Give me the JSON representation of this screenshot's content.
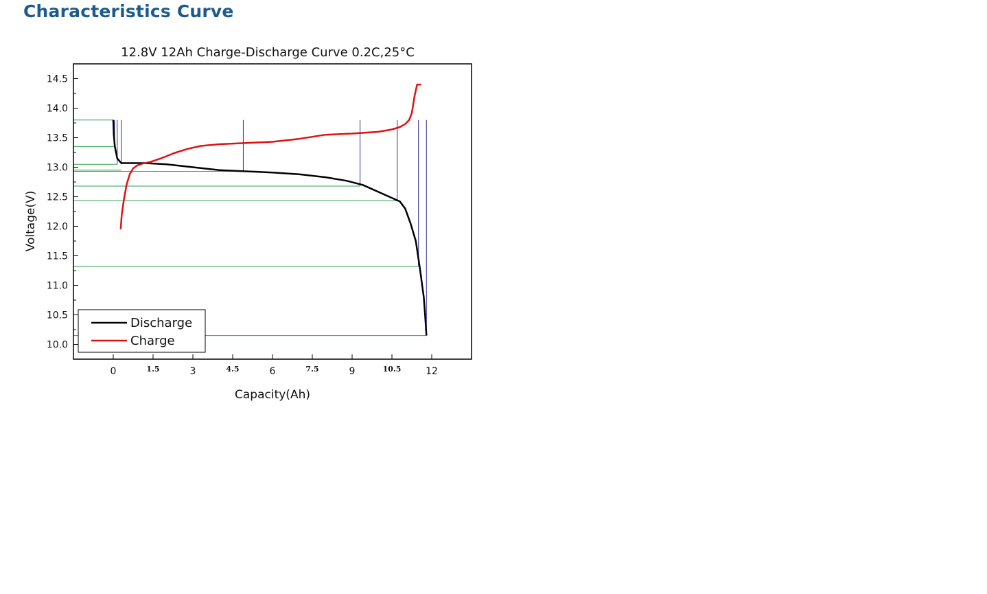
{
  "heading": "Characteristics Curve",
  "colors": {
    "heading": "#1d5b8e",
    "discharge": "#000000",
    "charge": "#e01010",
    "guide_h": "#2e9e4f",
    "guide_v": "#2d2d9e"
  },
  "chart_data": {
    "type": "line",
    "title": "12.8V 12Ah Charge-Discharge Curve  0.2C,25°C",
    "xlabel": "Capacity(Ah)",
    "ylabel": "Voltage(V)",
    "xlim": [
      -1.5,
      13.5
    ],
    "ylim": [
      9.75,
      14.75
    ],
    "x_ticks": [
      "0",
      "1.5",
      "3",
      "4.5",
      "6",
      "7.5",
      "9",
      "10.5",
      "12"
    ],
    "y_ticks": [
      "10.0",
      "10.5",
      "11.0",
      "11.5",
      "12.0",
      "12.5",
      "13.0",
      "13.5",
      "14.0",
      "14.5"
    ],
    "legend_position": "bottom-left",
    "grid": false,
    "series": [
      {
        "name": "Discharge",
        "x": [
          0.0,
          0.02,
          0.06,
          0.15,
          0.3,
          0.6,
          1.2,
          2.0,
          3.0,
          4.0,
          5.0,
          6.0,
          7.0,
          8.0,
          8.8,
          9.4,
          9.9,
          10.4,
          10.8,
          11.0,
          11.2,
          11.4,
          11.55,
          11.7,
          11.75,
          11.8
        ],
        "y": [
          13.8,
          13.55,
          13.35,
          13.15,
          13.07,
          13.07,
          13.07,
          13.05,
          13.0,
          12.95,
          12.93,
          12.91,
          12.88,
          12.83,
          12.77,
          12.7,
          12.6,
          12.5,
          12.42,
          12.3,
          12.05,
          11.75,
          11.3,
          10.8,
          10.5,
          10.15
        ]
      },
      {
        "name": "Charge",
        "x": [
          0.28,
          0.32,
          0.4,
          0.5,
          0.62,
          0.75,
          0.9,
          1.1,
          1.4,
          1.8,
          2.3,
          2.8,
          3.3,
          4.0,
          5.0,
          6.0,
          7.0,
          8.0,
          9.0,
          10.0,
          10.5,
          10.8,
          11.0,
          11.15,
          11.25,
          11.3,
          11.35,
          11.4,
          11.45,
          11.5,
          11.6
        ],
        "y": [
          11.95,
          12.2,
          12.45,
          12.7,
          12.88,
          12.98,
          13.03,
          13.06,
          13.09,
          13.15,
          13.24,
          13.31,
          13.36,
          13.39,
          13.41,
          13.43,
          13.48,
          13.55,
          13.57,
          13.6,
          13.64,
          13.68,
          13.73,
          13.8,
          13.92,
          14.05,
          14.2,
          14.3,
          14.4,
          14.4,
          14.4
        ]
      }
    ],
    "guide_lines_y": [
      13.8,
      13.35,
      13.05,
      12.95,
      12.93,
      12.68,
      12.43,
      11.32,
      10.15
    ],
    "guide_lines_x": [
      0.0,
      0.05,
      0.15,
      0.3,
      4.9,
      9.3,
      10.7,
      11.5,
      11.8
    ]
  }
}
